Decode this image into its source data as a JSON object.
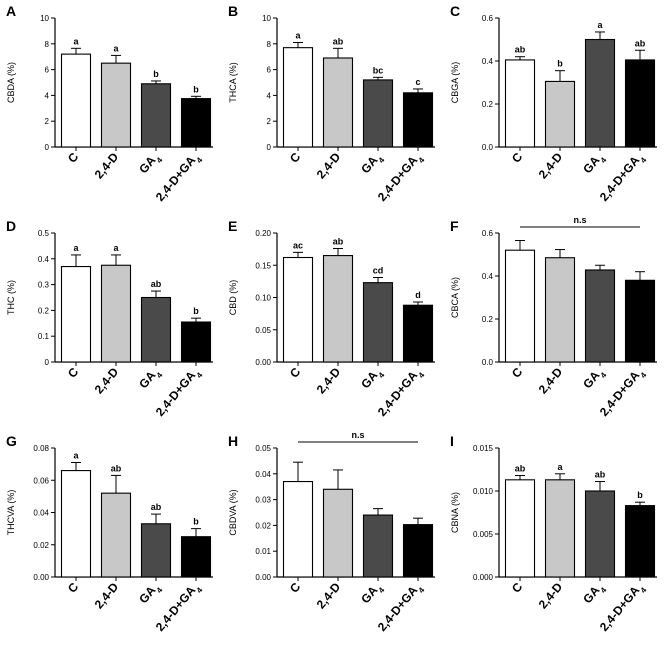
{
  "chart_data": [
    {
      "panel": "A",
      "type": "bar",
      "ylabel": "CBDA (%)",
      "ylim": [
        0,
        10
      ],
      "yticks": [
        "0",
        "2",
        "4",
        "6",
        "8",
        "10"
      ],
      "categories": [
        "C",
        "2,4-D",
        "GA",
        "2,4-D+GA"
      ],
      "values": [
        7.2,
        6.5,
        4.9,
        3.75
      ],
      "errors": [
        0.45,
        0.6,
        0.22,
        0.18
      ],
      "sig": [
        "a",
        "a",
        "b",
        "b"
      ],
      "colors": [
        "#ffffff",
        "#c8c8c8",
        "#4a4a4a",
        "#000000"
      ]
    },
    {
      "panel": "B",
      "type": "bar",
      "ylabel": "THCA (%)",
      "ylim": [
        0,
        10
      ],
      "yticks": [
        "0",
        "2",
        "4",
        "6",
        "8",
        "10"
      ],
      "categories": [
        "C",
        "2,4-D",
        "GA",
        "2,4-D+GA"
      ],
      "values": [
        7.7,
        6.9,
        5.2,
        4.2
      ],
      "errors": [
        0.4,
        0.75,
        0.2,
        0.3
      ],
      "sig": [
        "a",
        "ab",
        "bc",
        "c"
      ],
      "colors": [
        "#ffffff",
        "#c8c8c8",
        "#4a4a4a",
        "#000000"
      ]
    },
    {
      "panel": "C",
      "type": "bar",
      "ylabel": "CBGA (%)",
      "ylim": [
        0,
        0.6
      ],
      "yticks": [
        "0.0",
        "0.2",
        "0.4",
        "0.6"
      ],
      "categories": [
        "C",
        "2,4-D",
        "GA",
        "2,4-D+GA"
      ],
      "values": [
        0.405,
        0.305,
        0.5,
        0.405
      ],
      "errors": [
        0.015,
        0.05,
        0.035,
        0.045
      ],
      "sig": [
        "ab",
        "b",
        "a",
        "ab"
      ],
      "colors": [
        "#ffffff",
        "#c8c8c8",
        "#4a4a4a",
        "#000000"
      ]
    },
    {
      "panel": "D",
      "type": "bar",
      "ylabel": "THC (%)",
      "ylim": [
        0,
        0.5
      ],
      "yticks": [
        "0",
        "0.1",
        "0.2",
        "0.3",
        "0.4",
        "0.5"
      ],
      "categories": [
        "C",
        "2,4-D",
        "GA",
        "2,4-D+GA"
      ],
      "values": [
        0.37,
        0.375,
        0.25,
        0.155
      ],
      "errors": [
        0.045,
        0.04,
        0.025,
        0.015
      ],
      "sig": [
        "a",
        "a",
        "ab",
        "b"
      ],
      "colors": [
        "#ffffff",
        "#c8c8c8",
        "#4a4a4a",
        "#000000"
      ]
    },
    {
      "panel": "E",
      "type": "bar",
      "ylabel": "CBD (%)",
      "ylim": [
        0,
        0.2
      ],
      "yticks": [
        "0.00",
        "0.05",
        "0.10",
        "0.15",
        "0.20"
      ],
      "categories": [
        "C",
        "2,4-D",
        "GA",
        "2,4-D+GA"
      ],
      "values": [
        0.162,
        0.165,
        0.123,
        0.088
      ],
      "errors": [
        0.008,
        0.011,
        0.008,
        0.005
      ],
      "sig": [
        "ac",
        "ab",
        "cd",
        "d"
      ],
      "colors": [
        "#ffffff",
        "#c8c8c8",
        "#4a4a4a",
        "#000000"
      ]
    },
    {
      "panel": "F",
      "type": "bar",
      "ylabel": "CBCA (%)",
      "ylim": [
        0,
        0.6
      ],
      "yticks": [
        "0.0",
        "0.2",
        "0.4",
        "0.6"
      ],
      "categories": [
        "C",
        "2,4-D",
        "GA",
        "2,4-D+GA"
      ],
      "values": [
        0.52,
        0.485,
        0.428,
        0.38
      ],
      "errors": [
        0.045,
        0.038,
        0.022,
        0.04
      ],
      "sig": [
        "",
        "",
        "",
        ""
      ],
      "ns": "n.s",
      "colors": [
        "#ffffff",
        "#c8c8c8",
        "#4a4a4a",
        "#000000"
      ]
    },
    {
      "panel": "G",
      "type": "bar",
      "ylabel": "THCVA (%)",
      "ylim": [
        0,
        0.08
      ],
      "yticks": [
        "0.00",
        "0.02",
        "0.04",
        "0.06",
        "0.08"
      ],
      "categories": [
        "C",
        "2,4-D",
        "GA",
        "2,4-D+GA"
      ],
      "values": [
        0.066,
        0.052,
        0.033,
        0.025
      ],
      "errors": [
        0.005,
        0.011,
        0.006,
        0.005
      ],
      "sig": [
        "a",
        "ab",
        "ab",
        "b"
      ],
      "colors": [
        "#ffffff",
        "#c8c8c8",
        "#4a4a4a",
        "#000000"
      ]
    },
    {
      "panel": "H",
      "type": "bar",
      "ylabel": "CBDVA (%)",
      "ylim": [
        0,
        0.05
      ],
      "yticks": [
        "0.00",
        "0.01",
        "0.02",
        "0.03",
        "0.04",
        "0.05"
      ],
      "categories": [
        "C",
        "2,4-D",
        "GA",
        "2,4-D+GA"
      ],
      "values": [
        0.037,
        0.034,
        0.024,
        0.0203
      ],
      "errors": [
        0.0075,
        0.0075,
        0.0025,
        0.0025
      ],
      "sig": [
        "",
        "",
        "",
        ""
      ],
      "ns": "n.s",
      "colors": [
        "#ffffff",
        "#c8c8c8",
        "#4a4a4a",
        "#000000"
      ]
    },
    {
      "panel": "I",
      "type": "bar",
      "ylabel": "CBNA (%)",
      "ylim": [
        0,
        0.015
      ],
      "yticks": [
        "0.000",
        "0.005",
        "0.010",
        "0.015"
      ],
      "categories": [
        "C",
        "2,4-D",
        "GA",
        "2,4-D+GA"
      ],
      "values": [
        0.0113,
        0.0113,
        0.01,
        0.0083
      ],
      "errors": [
        0.0005,
        0.0007,
        0.0011,
        0.0004
      ],
      "sig": [
        "ab",
        "a",
        "ab",
        "b"
      ],
      "colors": [
        "#ffffff",
        "#c8c8c8",
        "#4a4a4a",
        "#000000"
      ]
    }
  ],
  "subscript": "4"
}
